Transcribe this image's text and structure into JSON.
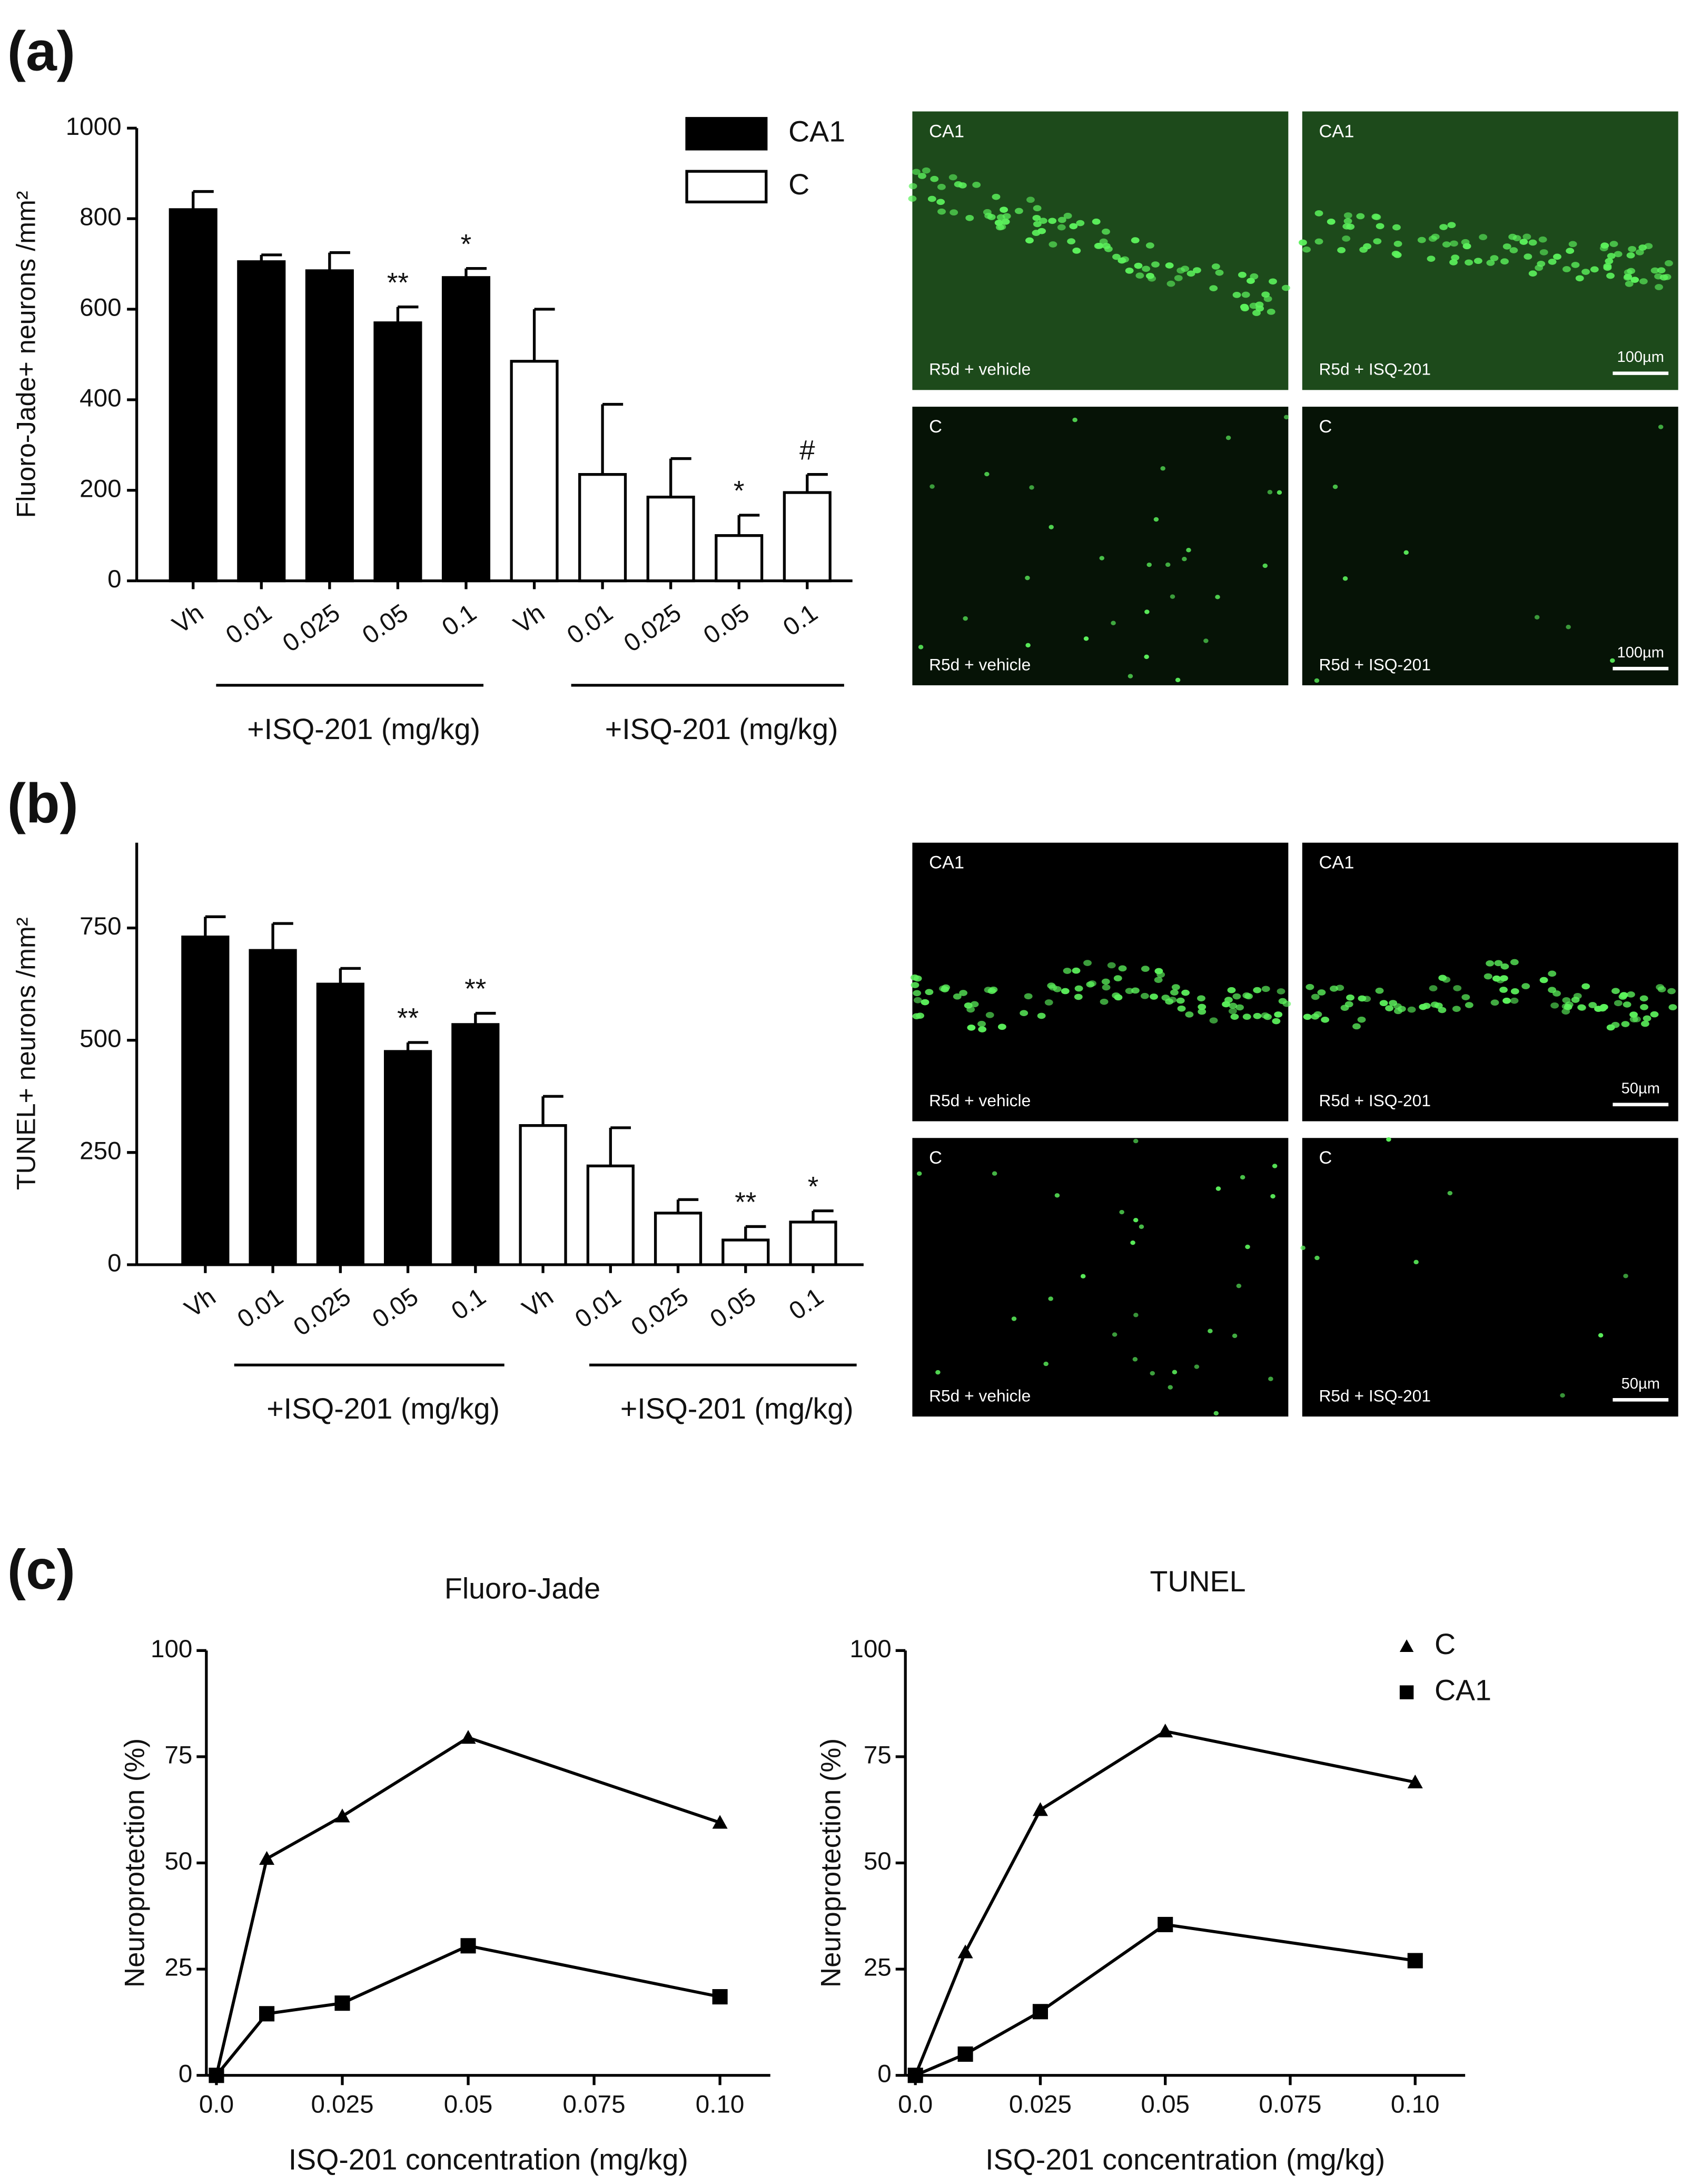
{
  "panel_labels": [
    "(a)",
    "(b)",
    "(c)"
  ],
  "chart_data": [
    {
      "type": "bar",
      "ylabel": "Fluoro-Jade+ neurons /mm²",
      "categories": [
        "Vh",
        "0.01",
        "0.025",
        "0.05",
        "0.1",
        "Vh",
        "0.01",
        "0.025",
        "0.05",
        "0.1"
      ],
      "ylim": [
        0,
        1000
      ],
      "yticks": [
        0,
        200,
        400,
        600,
        800,
        1000
      ],
      "legend": "upper right",
      "group_labels": [
        "+ISQ-201 (mg/kg)",
        "+ISQ-201 (mg/kg)"
      ],
      "series": [
        {
          "name": "CA1",
          "color": "#000000",
          "values": [
            820,
            705,
            685,
            570,
            670,
            null,
            null,
            null,
            null,
            null
          ],
          "errors": [
            40,
            15,
            40,
            35,
            20,
            null,
            null,
            null,
            null,
            null
          ],
          "significance": [
            null,
            null,
            null,
            "**",
            "*",
            null,
            null,
            null,
            null,
            null
          ]
        },
        {
          "name": "C",
          "color": "#ffffff",
          "values": [
            null,
            null,
            null,
            null,
            null,
            485,
            235,
            185,
            100,
            195
          ],
          "errors": [
            null,
            null,
            null,
            null,
            null,
            115,
            155,
            85,
            45,
            40
          ],
          "significance": [
            null,
            null,
            null,
            null,
            null,
            null,
            null,
            null,
            "*",
            "#"
          ]
        }
      ]
    },
    {
      "type": "bar",
      "ylabel": "TUNEL+ neurons /mm²",
      "categories": [
        "Vh",
        "0.01",
        "0.025",
        "0.05",
        "0.1",
        "Vh",
        "0.01",
        "0.025",
        "0.05",
        "0.1"
      ],
      "ylim": [
        0,
        940
      ],
      "yticks": [
        0,
        250,
        500,
        750
      ],
      "group_labels": [
        "+ISQ-201 (mg/kg)",
        "+ISQ-201 (mg/kg)"
      ],
      "series": [
        {
          "color": "#000000",
          "values": [
            730,
            700,
            625,
            475,
            535,
            null,
            null,
            null,
            null,
            null
          ],
          "errors": [
            45,
            60,
            35,
            20,
            25,
            null,
            null,
            null,
            null,
            null
          ],
          "significance": [
            null,
            null,
            null,
            "**",
            "**",
            null,
            null,
            null,
            null,
            null
          ]
        },
        {
          "color": "#ffffff",
          "values": [
            null,
            null,
            null,
            null,
            null,
            310,
            220,
            115,
            55,
            95
          ],
          "errors": [
            null,
            null,
            null,
            null,
            null,
            65,
            85,
            30,
            30,
            25
          ],
          "significance": [
            null,
            null,
            null,
            null,
            null,
            null,
            null,
            null,
            "**",
            "*"
          ]
        }
      ]
    },
    {
      "type": "line",
      "title": "Fluoro-Jade",
      "xlabel": "ISQ-201 concentration (mg/kg)",
      "ylabel": "Neuroprotection (%)",
      "x": [
        0,
        0.01,
        0.025,
        0.05,
        0.1
      ],
      "xlim": [
        -0.002,
        0.11
      ],
      "ylim": [
        0,
        100
      ],
      "xticks": [
        {
          "value": 0,
          "label": "0.0"
        },
        0.025,
        0.05,
        0.075,
        {
          "value": 0.1,
          "label": "0.10"
        }
      ],
      "yticks": [
        0,
        25,
        50,
        75,
        100
      ],
      "series": [
        {
          "marker": "triangle",
          "color": "#000000",
          "values": [
            0,
            51,
            61,
            79.5,
            59.5
          ]
        },
        {
          "marker": "square",
          "color": "#000000",
          "values": [
            0,
            14.5,
            17,
            30.5,
            18.5
          ]
        }
      ]
    },
    {
      "type": "line",
      "title": "TUNEL",
      "xlabel": "ISQ-201 concentration (mg/kg)",
      "ylabel": "Neuroprotection (%)",
      "x": [
        0,
        0.01,
        0.025,
        0.05,
        0.1
      ],
      "xlim": [
        -0.002,
        0.11
      ],
      "ylim": [
        0,
        100
      ],
      "legend": "upper right",
      "xticks": [
        {
          "value": 0,
          "label": "0.0"
        },
        0.025,
        0.05,
        0.075,
        {
          "value": 0.1,
          "label": "0.10"
        }
      ],
      "yticks": [
        0,
        25,
        50,
        75,
        100
      ],
      "series": [
        {
          "name": "C",
          "marker": "triangle",
          "color": "#000000",
          "values": [
            0,
            29,
            62.5,
            81,
            69
          ]
        },
        {
          "name": "CA1",
          "marker": "square",
          "color": "#000000",
          "values": [
            0,
            5,
            15,
            35.5,
            27
          ]
        }
      ]
    }
  ],
  "micrographs": [
    {
      "region": "CA1",
      "condition": "R5d + vehicle"
    },
    {
      "region": "CA1",
      "condition": "R5d + ISQ-201",
      "scale_bar": "100µm"
    },
    {
      "region": "C",
      "condition": "R5d + vehicle"
    },
    {
      "region": "C",
      "condition": "R5d + ISQ-201",
      "scale_bar": "100µm"
    },
    {
      "region": "CA1",
      "condition": "R5d + vehicle"
    },
    {
      "region": "CA1",
      "condition": "R5d + ISQ-201",
      "scale_bar": "50µm"
    },
    {
      "region": "C",
      "condition": "R5d + vehicle"
    },
    {
      "region": "C",
      "condition": "R5d + ISQ-201",
      "scale_bar": "50µm"
    }
  ]
}
